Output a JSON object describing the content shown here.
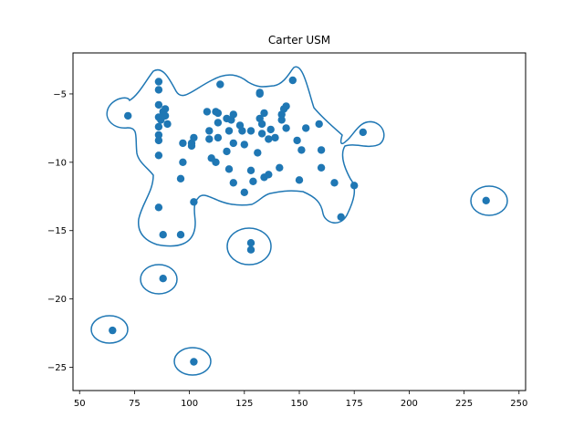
{
  "chart_data": {
    "type": "scatter",
    "title": "Carter USM",
    "xlabel": "",
    "ylabel": "",
    "xlim": [
      47,
      253
    ],
    "ylim": [
      -26.7,
      -2.0
    ],
    "xticks": [
      50,
      75,
      100,
      125,
      150,
      175,
      200,
      225,
      250
    ],
    "yticks": [
      -5,
      -10,
      -15,
      -20,
      -25
    ],
    "xtick_labels": [
      "50",
      "75",
      "100",
      "125",
      "150",
      "175",
      "200",
      "225",
      "250"
    ],
    "ytick_labels": [
      "−5",
      "−10",
      "−15",
      "−20",
      "−25"
    ],
    "grid": false,
    "point_color": "#1f77b4",
    "contour_color": "#1f77b4",
    "points": [
      [
        72,
        -6.6
      ],
      [
        86,
        -4.1
      ],
      [
        86,
        -4.7
      ],
      [
        86,
        -5.8
      ],
      [
        86,
        -6.7
      ],
      [
        86,
        -7.4
      ],
      [
        86,
        -8.0
      ],
      [
        86,
        -8.4
      ],
      [
        86,
        -9.5
      ],
      [
        86,
        -13.3
      ],
      [
        87,
        -6.9
      ],
      [
        88,
        -6.3
      ],
      [
        89,
        -6.1
      ],
      [
        89,
        -6.6
      ],
      [
        90,
        -7.2
      ],
      [
        88,
        -15.3
      ],
      [
        96,
        -15.3
      ],
      [
        96,
        -11.2
      ],
      [
        97,
        -10.0
      ],
      [
        97,
        -8.6
      ],
      [
        101,
        -8.6
      ],
      [
        101,
        -8.8
      ],
      [
        102,
        -8.2
      ],
      [
        102,
        -12.9
      ],
      [
        108,
        -6.3
      ],
      [
        109,
        -7.7
      ],
      [
        109,
        -8.3
      ],
      [
        110,
        -9.7
      ],
      [
        112,
        -10.0
      ],
      [
        112,
        -6.3
      ],
      [
        113,
        -6.4
      ],
      [
        113,
        -7.1
      ],
      [
        113,
        -8.2
      ],
      [
        114,
        -4.3
      ],
      [
        117,
        -6.8
      ],
      [
        117,
        -9.2
      ],
      [
        118,
        -7.7
      ],
      [
        118,
        -10.5
      ],
      [
        119,
        -6.9
      ],
      [
        120,
        -6.5
      ],
      [
        120,
        -8.6
      ],
      [
        120,
        -11.5
      ],
      [
        123,
        -7.3
      ],
      [
        124,
        -7.7
      ],
      [
        125,
        -8.7
      ],
      [
        125,
        -12.2
      ],
      [
        128,
        -10.6
      ],
      [
        128,
        -7.7
      ],
      [
        129,
        -11.4
      ],
      [
        131,
        -9.3
      ],
      [
        132,
        -4.9
      ],
      [
        132,
        -5.0
      ],
      [
        132,
        -6.8
      ],
      [
        133,
        -7.2
      ],
      [
        133,
        -7.9
      ],
      [
        134,
        -6.4
      ],
      [
        134,
        -11.1
      ],
      [
        136,
        -10.9
      ],
      [
        136,
        -8.3
      ],
      [
        137,
        -7.6
      ],
      [
        139,
        -8.2
      ],
      [
        141,
        -10.4
      ],
      [
        142,
        -6.9
      ],
      [
        142,
        -6.5
      ],
      [
        143,
        -6.1
      ],
      [
        144,
        -5.9
      ],
      [
        144,
        -7.5
      ],
      [
        147,
        -4.0
      ],
      [
        149,
        -8.4
      ],
      [
        150,
        -11.3
      ],
      [
        151,
        -9.1
      ],
      [
        153,
        -7.5
      ],
      [
        159,
        -7.2
      ],
      [
        160,
        -9.1
      ],
      [
        160,
        -10.4
      ],
      [
        166,
        -11.5
      ],
      [
        169,
        -14.0
      ],
      [
        175,
        -11.7
      ],
      [
        179,
        -7.8
      ],
      [
        128,
        -15.9
      ],
      [
        128,
        -16.4
      ],
      [
        88,
        -18.5
      ],
      [
        65,
        -22.3
      ],
      [
        102,
        -24.6
      ],
      [
        235,
        -12.8
      ]
    ]
  }
}
